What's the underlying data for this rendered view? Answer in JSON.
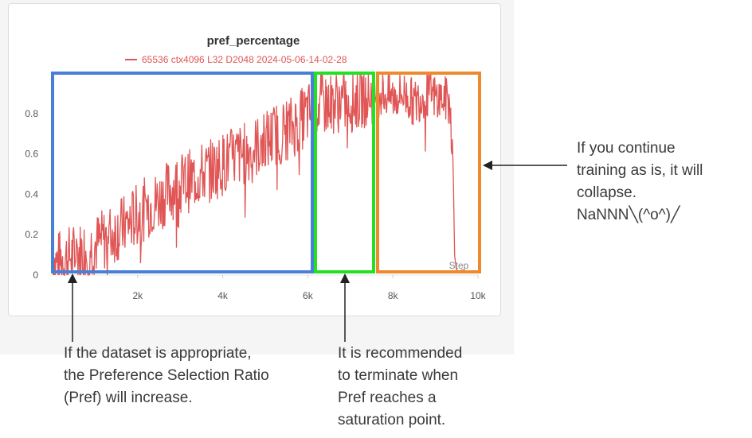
{
  "chart_data": {
    "type": "line",
    "title": "pref_percentage",
    "xlabel": "Step",
    "ylabel": "",
    "xlim": [
      0,
      10000
    ],
    "ylim": [
      0,
      1.0
    ],
    "x_ticks": [
      {
        "value": 2000,
        "label": "2k"
      },
      {
        "value": 4000,
        "label": "4k"
      },
      {
        "value": 6000,
        "label": "6k"
      },
      {
        "value": 8000,
        "label": "8k"
      },
      {
        "value": 10000,
        "label": "10k"
      }
    ],
    "y_ticks": [
      {
        "value": 0,
        "label": "0"
      },
      {
        "value": 0.2,
        "label": "0.2"
      },
      {
        "value": 0.4,
        "label": "0.4"
      },
      {
        "value": 0.6,
        "label": "0.6"
      },
      {
        "value": 0.8,
        "label": "0.8"
      }
    ],
    "grid": false,
    "legend_position": "top",
    "series": [
      {
        "name": "65536 ctx4096 L32 D2048 2024-05-06-14-02-28",
        "color": "#e05555",
        "x": [
          0,
          250,
          500,
          750,
          1000,
          1250,
          1500,
          1750,
          2000,
          2250,
          2500,
          2750,
          3000,
          3250,
          3500,
          3750,
          4000,
          4250,
          4500,
          4750,
          5000,
          5250,
          5500,
          5750,
          6000,
          6250,
          6500,
          6750,
          7000,
          7250,
          7500,
          7750,
          8000,
          8250,
          8500,
          8750,
          9000,
          9250,
          9350,
          9420,
          9450,
          9500,
          9600,
          9700
        ],
        "y": [
          0.05,
          0.08,
          0.1,
          0.12,
          0.15,
          0.18,
          0.22,
          0.25,
          0.3,
          0.34,
          0.37,
          0.42,
          0.45,
          0.47,
          0.5,
          0.52,
          0.55,
          0.58,
          0.6,
          0.63,
          0.66,
          0.7,
          0.72,
          0.75,
          0.8,
          0.84,
          0.85,
          0.86,
          0.86,
          0.88,
          0.9,
          0.9,
          0.88,
          0.9,
          0.85,
          0.9,
          0.88,
          0.87,
          0.85,
          0.5,
          0.1,
          0.02,
          0.02,
          0.02
        ]
      }
    ],
    "annotations": [
      {
        "label": "blue-box",
        "x_range": [
          0,
          6200
        ],
        "color": "#4a7fd6"
      },
      {
        "label": "green-box",
        "x_range": [
          6300,
          7600
        ],
        "color": "#22e022"
      },
      {
        "label": "orange-box",
        "x_range": [
          7700,
          10000
        ],
        "color": "#ee8a2e"
      }
    ]
  },
  "notes": {
    "left": "If the dataset is appropriate,\nthe Preference Selection Ratio\n(Pref) will increase.",
    "middle": "It is recommended\nto terminate when\nPref reaches a\nsaturation point.",
    "right": "If you continue\ntraining as is, it will\ncollapse.\nNaNNN╲(^o^)╱"
  }
}
